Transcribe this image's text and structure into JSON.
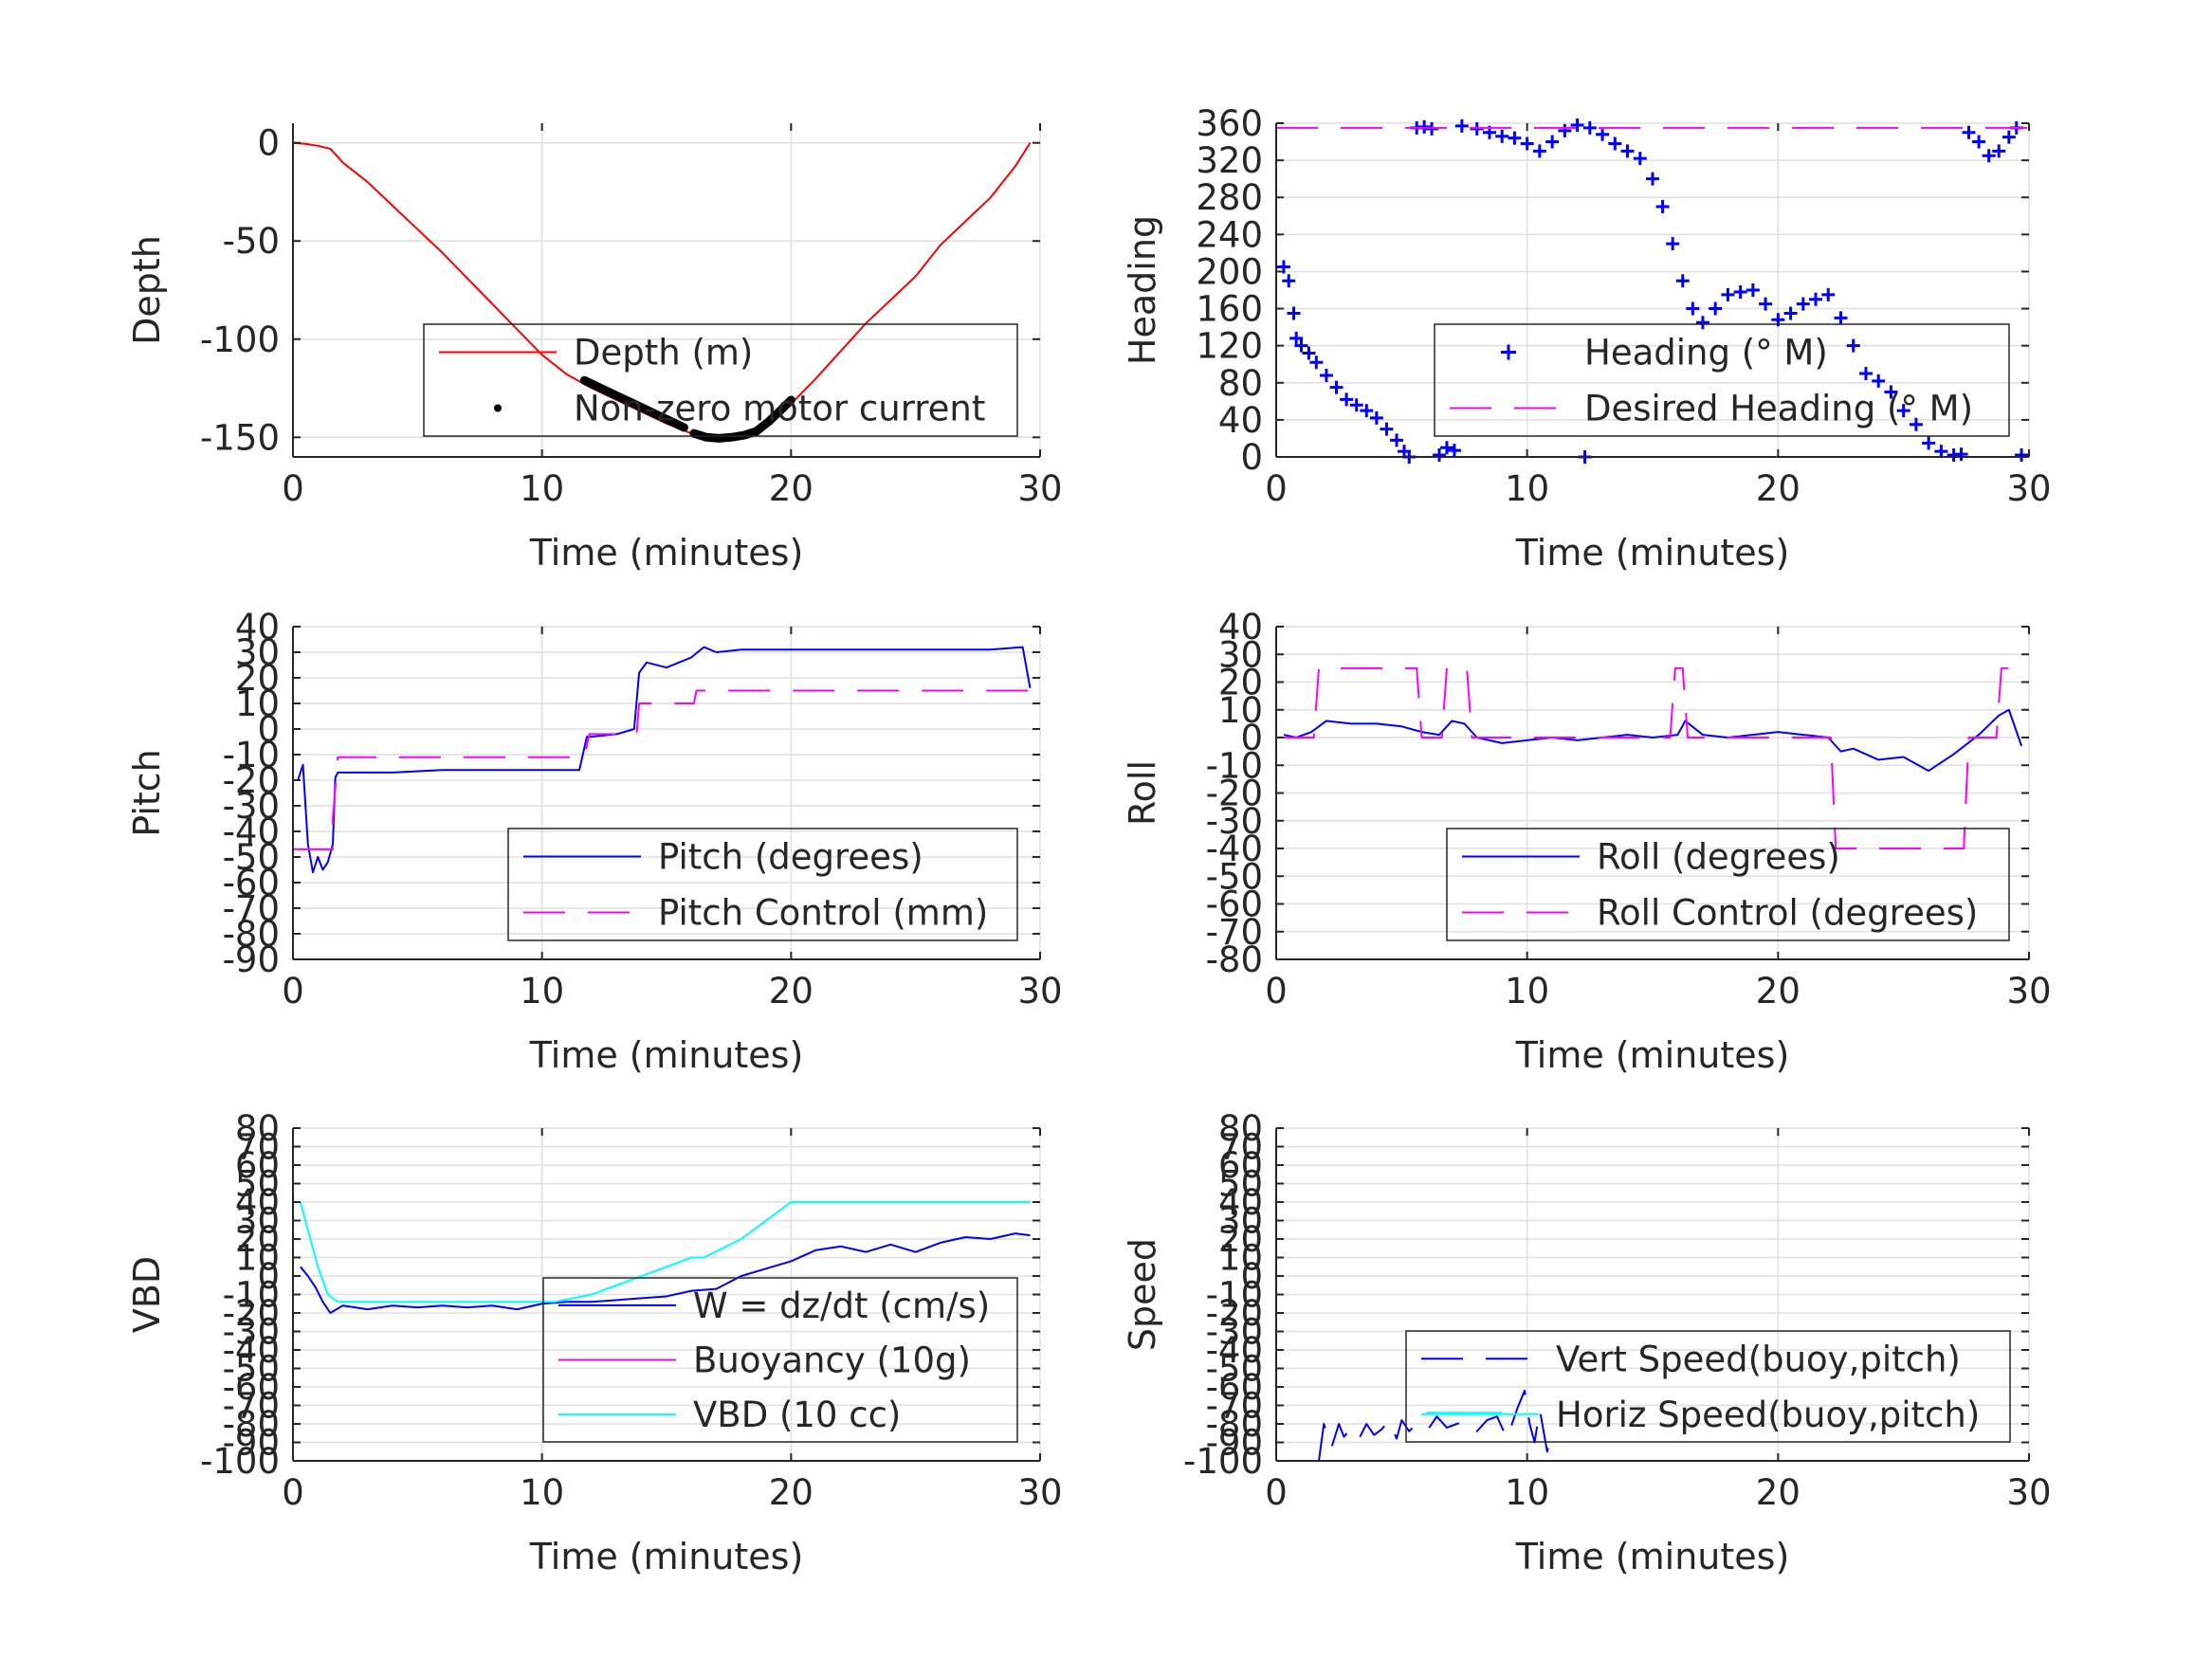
{
  "chart_data": [
    {
      "type": "line",
      "xlabel": "Time (minutes)",
      "ylabel": "Depth",
      "xlim": [
        0,
        30
      ],
      "ylim": [
        -160,
        10
      ],
      "xticks": [
        0,
        10,
        20,
        30
      ],
      "yticks": [
        0,
        -50,
        -100,
        -150
      ],
      "grid": true,
      "legend_position": "bottom-right",
      "series": [
        {
          "name": "Depth (m)",
          "style": "solid",
          "color": "#ff0000",
          "x": [
            0,
            0.5,
            1.0,
            1.5,
            2,
            3,
            4,
            5,
            6,
            7,
            8,
            9,
            10,
            11,
            12,
            13,
            14,
            15,
            16,
            16.5,
            17,
            17.5,
            18,
            19,
            20,
            21,
            22,
            23,
            24,
            25,
            26,
            27,
            28,
            29,
            29.6
          ],
          "y": [
            0,
            -0.5,
            -1.5,
            -3,
            -10,
            -20,
            -32,
            -44,
            -56,
            -69,
            -82,
            -95,
            -108,
            -118,
            -125,
            -131,
            -137,
            -143,
            -148,
            -149.5,
            -150,
            -150,
            -149,
            -143,
            -133,
            -120,
            -106,
            -92,
            -80,
            -68,
            -52,
            -40,
            -28,
            -12,
            0
          ]
        },
        {
          "name": "Non-zero motor current",
          "style": "dots",
          "color": "#000000",
          "segments": [
            {
              "x": [
                11.7,
                12.2,
                12.7,
                13.2,
                13.7,
                14.2,
                14.7,
                15.2,
                15.7
              ],
              "y": [
                -121,
                -124,
                -127,
                -130,
                -133,
                -136,
                -139,
                -142,
                -145
              ]
            },
            {
              "x": [
                16.1,
                16.6,
                17.1,
                17.6,
                18.1,
                18.6,
                19.1,
                19.6,
                20.0
              ],
              "y": [
                -148,
                -150,
                -150.5,
                -150,
                -149,
                -147,
                -142,
                -136,
                -131
              ]
            }
          ]
        }
      ]
    },
    {
      "type": "scatter",
      "xlabel": "Time (minutes)",
      "ylabel": "Heading",
      "xlim": [
        0,
        30
      ],
      "ylim": [
        0,
        360
      ],
      "xticks": [
        0,
        10,
        20,
        30
      ],
      "yticks": [
        0,
        40,
        80,
        120,
        160,
        200,
        240,
        280,
        320,
        360
      ],
      "grid": true,
      "legend_position": "bottom-right",
      "series": [
        {
          "name": "Heading (° M)",
          "style": "plus",
          "color": "#0000ff",
          "x": [
            0.3,
            0.5,
            0.7,
            0.8,
            1.0,
            1.3,
            1.6,
            2.0,
            2.4,
            2.8,
            3.2,
            3.6,
            4.0,
            4.4,
            4.8,
            5.1,
            5.3,
            5.6,
            5.9,
            6.2,
            6.5,
            6.8,
            7.1,
            7.4,
            8,
            8.5,
            9,
            9.5,
            10,
            10.5,
            11,
            11.5,
            12,
            12.3,
            12.5,
            13,
            13.5,
            14,
            14.5,
            15,
            15.4,
            15.8,
            16.2,
            16.6,
            17,
            17.5,
            18,
            18.5,
            19,
            19.5,
            20,
            20.5,
            21,
            21.5,
            22,
            22.5,
            23,
            23.5,
            24,
            24.5,
            25,
            25.5,
            26,
            26.5,
            27,
            27.3,
            27.6,
            28,
            28.4,
            28.8,
            29.2,
            29.5,
            29.7
          ],
          "y": [
            205,
            190,
            155,
            128,
            120,
            112,
            102,
            88,
            75,
            62,
            56,
            50,
            42,
            30,
            18,
            6,
            0,
            355,
            356,
            354,
            2,
            10,
            7,
            357,
            354,
            350,
            346,
            344,
            338,
            330,
            340,
            352,
            358,
            0,
            355,
            348,
            338,
            330,
            322,
            300,
            270,
            230,
            190,
            160,
            145,
            160,
            175,
            178,
            180,
            165,
            148,
            155,
            165,
            170,
            175,
            150,
            120,
            90,
            82,
            70,
            50,
            35,
            15,
            6,
            2,
            3,
            350,
            340,
            325,
            330,
            345,
            355,
            2
          ]
        },
        {
          "name": "Desired Heading (° M)",
          "style": "dashed",
          "color": "#ff00ff",
          "x": [
            0,
            30
          ],
          "y": [
            355,
            355
          ]
        }
      ]
    },
    {
      "type": "line",
      "xlabel": "Time (minutes)",
      "ylabel": "Pitch",
      "xlim": [
        0,
        30
      ],
      "ylim": [
        -90,
        40
      ],
      "xticks": [
        0,
        10,
        20,
        30
      ],
      "yticks": [
        40,
        30,
        20,
        10,
        0,
        -10,
        -20,
        -30,
        -40,
        -50,
        -60,
        -70,
        -80,
        -90
      ],
      "grid": true,
      "legend_position": "bottom-right",
      "series": [
        {
          "name": "Pitch (degrees)",
          "style": "solid",
          "color": "#0000ff",
          "x": [
            0.2,
            0.4,
            0.6,
            0.8,
            1.0,
            1.2,
            1.4,
            1.6,
            1.7,
            1.8,
            2.5,
            4,
            6,
            8,
            10,
            11.5,
            11.8,
            12,
            13,
            13.7,
            13.9,
            14.2,
            15,
            16,
            16.5,
            17,
            18,
            20,
            22,
            24,
            26,
            28,
            29.3,
            29.6
          ],
          "y": [
            -20,
            -14,
            -45,
            -56,
            -50,
            -55,
            -52,
            -45,
            -19,
            -17,
            -17,
            -17,
            -16,
            -16,
            -16,
            -16,
            -3,
            -3,
            -2,
            0,
            22,
            26,
            24,
            28,
            32,
            30,
            31,
            31,
            31,
            31,
            31,
            31,
            32,
            16
          ]
        },
        {
          "name": "Pitch Control (mm)",
          "style": "dashed",
          "color": "#ff00ff",
          "x": [
            0,
            1.6,
            1.6,
            1.8,
            2.0,
            11.7,
            11.9,
            13.8,
            13.9,
            16.1,
            16.2,
            29.6
          ],
          "y": [
            -47,
            -47,
            -35,
            -11,
            -11,
            -11,
            -2,
            -2,
            10,
            10,
            15,
            15
          ]
        }
      ]
    },
    {
      "type": "line",
      "xlabel": "Time (minutes)",
      "ylabel": "Roll",
      "xlim": [
        0,
        30
      ],
      "ylim": [
        -80,
        40
      ],
      "xticks": [
        0,
        10,
        20,
        30
      ],
      "yticks": [
        40,
        30,
        20,
        10,
        0,
        -10,
        -20,
        -30,
        -40,
        -50,
        -60,
        -70,
        -80
      ],
      "grid": true,
      "legend_position": "bottom-right",
      "series": [
        {
          "name": "Roll (degrees)",
          "style": "solid",
          "color": "#0000ff",
          "x": [
            0.3,
            0.8,
            1.4,
            2,
            3,
            4,
            5,
            5.8,
            6.5,
            7,
            7.5,
            8,
            9,
            10,
            11,
            12,
            13,
            14,
            15,
            16,
            16.3,
            17,
            18,
            20,
            21,
            22,
            22.5,
            23,
            24,
            25,
            26,
            27,
            28,
            28.8,
            29.2,
            29.7
          ],
          "y": [
            1,
            0,
            2,
            6,
            5,
            5,
            4,
            2,
            1,
            6,
            5,
            0,
            -2,
            -1,
            0,
            -1,
            0,
            1,
            0,
            1,
            6,
            1,
            0,
            2,
            1,
            0,
            -5,
            -4,
            -8,
            -7,
            -12,
            -6,
            1,
            8,
            10,
            -3
          ]
        },
        {
          "name": "Roll Control (degrees)",
          "style": "dashed",
          "color": "#ff00ff",
          "x": [
            0,
            1.5,
            1.7,
            5.6,
            5.8,
            6.6,
            6.8,
            7.6,
            7.8,
            15.7,
            15.9,
            16.2,
            16.4,
            22.1,
            22.3,
            27.4,
            27.6,
            28.7,
            28.9,
            29.5
          ],
          "y": [
            0,
            0,
            25,
            25,
            0,
            0,
            25,
            25,
            0,
            0,
            25,
            25,
            0,
            0,
            -40,
            -40,
            0,
            0,
            25,
            25
          ]
        }
      ]
    },
    {
      "type": "line",
      "xlabel": "Time (minutes)",
      "ylabel": "VBD",
      "xlim": [
        0,
        30
      ],
      "ylim": [
        -100,
        80
      ],
      "xticks": [
        0,
        10,
        20,
        30
      ],
      "yticks": [
        80,
        70,
        60,
        50,
        40,
        30,
        20,
        10,
        0,
        -10,
        -20,
        -30,
        -40,
        -50,
        -60,
        -70,
        -80,
        -90,
        -100
      ],
      "grid": true,
      "legend_position": "bottom-right",
      "series": [
        {
          "name": "W = dz/dt (cm/s)",
          "style": "solid",
          "color": "#0000ff",
          "x": [
            0.3,
            0.6,
            0.9,
            1.2,
            1.5,
            2,
            3,
            4,
            5,
            6,
            7,
            8,
            9,
            10,
            11,
            12,
            13,
            14,
            15,
            16,
            17,
            18,
            19,
            20,
            21,
            22,
            23,
            24,
            25,
            26,
            27,
            28,
            29,
            29.6
          ],
          "y": [
            5,
            0,
            -6,
            -14,
            -20,
            -16,
            -18,
            -16,
            -17,
            -16,
            -17,
            -16,
            -18,
            -15,
            -14,
            -14,
            -13,
            -12,
            -11,
            -8,
            -7,
            0,
            4,
            8,
            14,
            16,
            13,
            17,
            13,
            18,
            21,
            20,
            23,
            22
          ]
        },
        {
          "name": "Buoyancy (10g)",
          "style": "solid",
          "color": "#ff00ff",
          "x": [],
          "y": []
        },
        {
          "name": "VBD (10 cc)",
          "style": "solid",
          "color": "#00ffff",
          "x": [
            0.3,
            0.6,
            1.0,
            1.4,
            1.8,
            2.2,
            10.5,
            12,
            14,
            16,
            16.5,
            18,
            20,
            29.6
          ],
          "y": [
            40,
            25,
            5,
            -10,
            -14,
            -14,
            -14,
            -10,
            0,
            10,
            10,
            20,
            40,
            40
          ]
        }
      ]
    },
    {
      "type": "line",
      "xlabel": "Time (minutes)",
      "ylabel": "Speed",
      "xlim": [
        0,
        30
      ],
      "ylim": [
        -100,
        80
      ],
      "xticks": [
        0,
        10,
        20,
        30
      ],
      "yticks": [
        80,
        70,
        60,
        50,
        40,
        30,
        20,
        10,
        0,
        -10,
        -20,
        -30,
        -40,
        -50,
        -60,
        -70,
        -80,
        -90,
        -100
      ],
      "grid": true,
      "legend_position": "bottom-right",
      "series": [
        {
          "name": "Vert Speed(buoy,pitch)",
          "style": "dashed",
          "color": "#0000ff",
          "x": [
            1.7,
            1.9,
            2.2,
            2.5,
            2.7,
            3,
            3.3,
            3.6,
            3.9,
            4.2,
            4.5,
            4.8,
            5,
            5.3,
            5.6,
            6,
            6.4,
            6.8,
            7.2,
            7.6,
            8,
            8.4,
            8.8,
            9.2,
            9.6,
            9.9,
            10.1,
            10.3,
            10.5,
            10.8,
            11
          ],
          "y": [
            -100,
            -80,
            -93,
            -80,
            -87,
            -82,
            -88,
            -80,
            -86,
            -83,
            -78,
            -88,
            -78,
            -84,
            -80,
            -84,
            -76,
            -82,
            -80,
            -78,
            -84,
            -78,
            -76,
            -88,
            -72,
            -62,
            -80,
            -90,
            -72,
            -95,
            -84
          ]
        },
        {
          "name": "Horiz Speed(buoy,pitch)",
          "style": "solid",
          "color": "#00ffff",
          "x": [
            6,
            9
          ],
          "y": [
            -74,
            -74
          ]
        }
      ]
    }
  ]
}
